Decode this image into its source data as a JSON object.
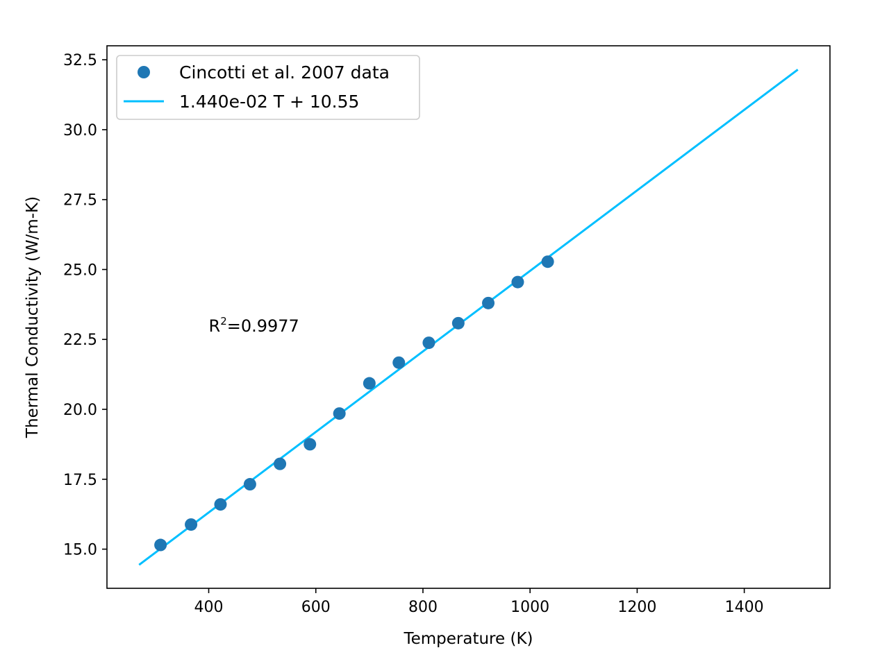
{
  "chart_data": {
    "type": "scatter",
    "title": "",
    "xlabel": "Temperature (K)",
    "ylabel": "Thermal Conductivity (W/m-K)",
    "xlim": [
      210,
      1560
    ],
    "ylim": [
      13.6,
      33.0
    ],
    "xticks": [
      400,
      600,
      800,
      1000,
      1200,
      1400
    ],
    "xtick_labels": [
      "400",
      "600",
      "800",
      "1000",
      "1200",
      "1400"
    ],
    "yticks": [
      15.0,
      17.5,
      20.0,
      22.5,
      25.0,
      27.5,
      30.0,
      32.5
    ],
    "ytick_labels": [
      "15.0",
      "17.5",
      "20.0",
      "22.5",
      "25.0",
      "27.5",
      "30.0",
      "32.5"
    ],
    "grid": false,
    "legend_position": "top-left",
    "series": [
      {
        "name": "Cincotti et al. 2007 data",
        "kind": "scatter",
        "color": "#1f77b4",
        "x": [
          310,
          367,
          422,
          477,
          533,
          589,
          644,
          700,
          755,
          811,
          866,
          922,
          977,
          1033
        ],
        "y": [
          15.15,
          15.88,
          16.6,
          17.32,
          18.05,
          18.75,
          19.85,
          20.93,
          21.67,
          22.38,
          23.08,
          23.8,
          24.55,
          25.28
        ]
      },
      {
        "name": "1.440e-02 T + 10.55",
        "kind": "line",
        "color": "#00bfff",
        "x": [
          270,
          1500
        ],
        "y": [
          14.44,
          32.15
        ]
      }
    ],
    "annotations": [
      {
        "base": "R",
        "sup": "2",
        "rest": "=0.9977",
        "x": 400,
        "y": 23.0
      }
    ]
  }
}
